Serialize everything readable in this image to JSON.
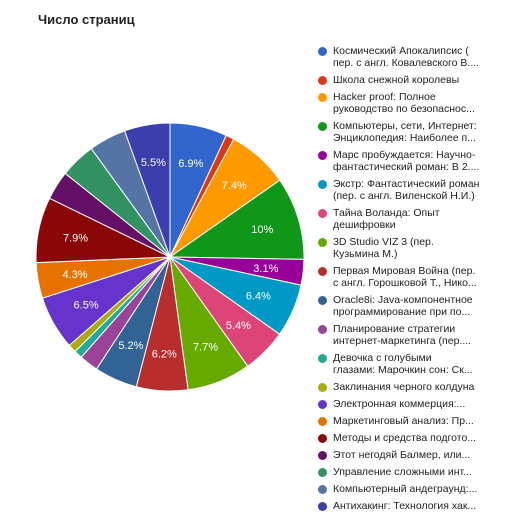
{
  "chart_data": {
    "type": "pie",
    "title": "Число страниц",
    "legend_position": "right",
    "slices": [
      {
        "lines": [
          "Космический Апокалипсис (",
          "пер. с англ. Ковалевского В...."
        ],
        "value": 6.9,
        "label": "6.9%",
        "color": "#3366cc"
      },
      {
        "lines": [
          "Школа снежной королевы"
        ],
        "value": 1.0,
        "label": "",
        "color": "#dc3912"
      },
      {
        "lines": [
          "Hacker proof: Полное",
          "руководство по безопаснос..."
        ],
        "value": 7.4,
        "label": "7.4%",
        "color": "#ff9900"
      },
      {
        "lines": [
          "Компьютеры, сети, Интернет:",
          "Энциклопедия: Наиболее п..."
        ],
        "value": 10,
        "label": "10%",
        "color": "#109618"
      },
      {
        "lines": [
          "Марс пробуждается: Научно-",
          "фантастический роман: В 2...."
        ],
        "value": 3.1,
        "label": "3.1%",
        "color": "#990099"
      },
      {
        "lines": [
          "Экстр: Фантастический роман",
          "(пер. с англ. Виленской Н.И.)"
        ],
        "value": 6.4,
        "label": "6.4%",
        "color": "#0099c6"
      },
      {
        "lines": [
          "Тайна Воланда: Опыт",
          "дешифровки"
        ],
        "value": 5.4,
        "label": "5.4%",
        "color": "#dd4477"
      },
      {
        "lines": [
          "3D Studio VIZ 3 (пер.",
          "Кузьмина М.)"
        ],
        "value": 7.7,
        "label": "7.7%",
        "color": "#66aa00"
      },
      {
        "lines": [
          "Первая Мировая Война (пер.",
          "с англ. Горошковой Т., Нико..."
        ],
        "value": 6.2,
        "label": "6.2%",
        "color": "#b82e2e"
      },
      {
        "lines": [
          "Oracle8i: Java-компонентное",
          "программирование при по..."
        ],
        "value": 5.2,
        "label": "5.2%",
        "color": "#316395"
      },
      {
        "lines": [
          "Планирование стратегии",
          "интернет-маркетинга (пер...."
        ],
        "value": 2.3,
        "label": "",
        "color": "#994499"
      },
      {
        "lines": [
          "Девочка с голубыми",
          "глазами: Марочкин сон: Ск..."
        ],
        "value": 1.0,
        "label": "",
        "color": "#22aa99"
      },
      {
        "lines": [
          "Заклинания черного колдуна"
        ],
        "value": 1.0,
        "label": "",
        "color": "#aaaa11"
      },
      {
        "lines": [
          "Электронная коммерция:..."
        ],
        "value": 6.5,
        "label": "6.5%",
        "color": "#6633cc"
      },
      {
        "lines": [
          "Маркетинговый анализ: Пр..."
        ],
        "value": 4.3,
        "label": "4.3%",
        "color": "#e67300"
      },
      {
        "lines": [
          "Методы и средства подгото..."
        ],
        "value": 7.9,
        "label": "7.9%",
        "color": "#8b0707"
      },
      {
        "lines": [
          "Этот негодяй Балмер, или..."
        ],
        "value": 3.5,
        "label": "",
        "color": "#651067"
      },
      {
        "lines": [
          "Управление сложными инт..."
        ],
        "value": 4.3,
        "label": "",
        "color": "#329262"
      },
      {
        "lines": [
          "Компьютерный андеграунд:..."
        ],
        "value": 4.5,
        "label": "",
        "color": "#5574a6"
      },
      {
        "lines": [
          "Антихакинг: Технология хак..."
        ],
        "value": 5.5,
        "label": "5.5%",
        "color": "#3b3eac"
      }
    ]
  }
}
